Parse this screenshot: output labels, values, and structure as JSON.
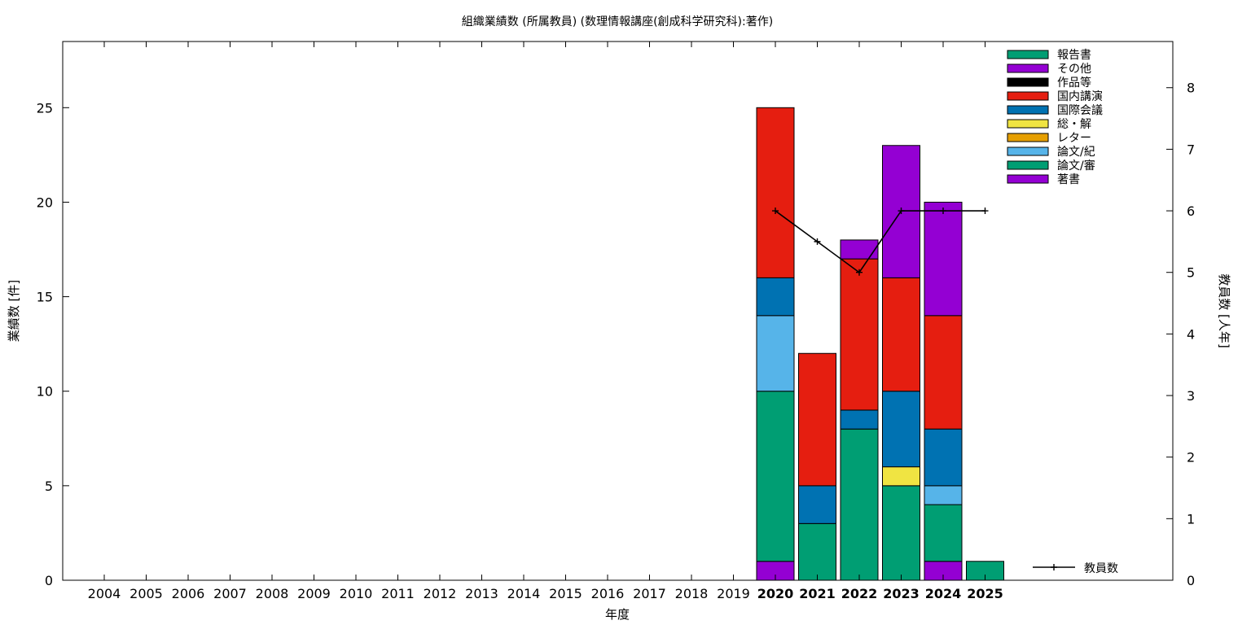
{
  "chart_data": {
    "type": "bar",
    "stacked": true,
    "title": "組織業績数 (所属教員) (数理情報講座(創成科学研究科):著作)",
    "xlabel": "年度",
    "ylabel": "業績数 [件]",
    "y2label": "教員数 [人年]",
    "ylim": [
      0,
      28.5
    ],
    "y2lim": [
      0,
      8.75
    ],
    "yticks": [
      0,
      5,
      10,
      15,
      20,
      25
    ],
    "y2ticks": [
      0,
      1,
      2,
      3,
      4,
      5,
      6,
      7,
      8
    ],
    "grid": false,
    "legend_position": "top-right",
    "categories": [
      "2004",
      "2005",
      "2006",
      "2007",
      "2008",
      "2009",
      "2010",
      "2011",
      "2012",
      "2013",
      "2014",
      "2015",
      "2016",
      "2017",
      "2018",
      "2019",
      "2020",
      "2021",
      "2022",
      "2023",
      "2024",
      "2025"
    ],
    "series": [
      {
        "name": "著書",
        "color": "#9400d3",
        "values": [
          0,
          0,
          0,
          0,
          0,
          0,
          0,
          0,
          0,
          0,
          0,
          0,
          0,
          0,
          0,
          0,
          1,
          0,
          0,
          0,
          1,
          0
        ]
      },
      {
        "name": "論文/審",
        "color": "#009e73",
        "values": [
          0,
          0,
          0,
          0,
          0,
          0,
          0,
          0,
          0,
          0,
          0,
          0,
          0,
          0,
          0,
          0,
          9,
          3,
          8,
          5,
          3,
          0
        ]
      },
      {
        "name": "論文/紀",
        "color": "#56b4e9",
        "values": [
          0,
          0,
          0,
          0,
          0,
          0,
          0,
          0,
          0,
          0,
          0,
          0,
          0,
          0,
          0,
          0,
          4,
          0,
          0,
          0,
          1,
          0
        ]
      },
      {
        "name": "レター",
        "color": "#e69f00",
        "values": [
          0,
          0,
          0,
          0,
          0,
          0,
          0,
          0,
          0,
          0,
          0,
          0,
          0,
          0,
          0,
          0,
          0,
          0,
          0,
          0,
          0,
          0
        ]
      },
      {
        "name": "総・解",
        "color": "#f0e442",
        "values": [
          0,
          0,
          0,
          0,
          0,
          0,
          0,
          0,
          0,
          0,
          0,
          0,
          0,
          0,
          0,
          0,
          0,
          0,
          0,
          1,
          0,
          0
        ]
      },
      {
        "name": "国際会議",
        "color": "#0072b2",
        "values": [
          0,
          0,
          0,
          0,
          0,
          0,
          0,
          0,
          0,
          0,
          0,
          0,
          0,
          0,
          0,
          0,
          2,
          2,
          1,
          4,
          3,
          0
        ]
      },
      {
        "name": "国内講演",
        "color": "#e51e10",
        "values": [
          0,
          0,
          0,
          0,
          0,
          0,
          0,
          0,
          0,
          0,
          0,
          0,
          0,
          0,
          0,
          0,
          9,
          7,
          8,
          6,
          6,
          0
        ]
      },
      {
        "name": "作品等",
        "color": "#000000",
        "values": [
          0,
          0,
          0,
          0,
          0,
          0,
          0,
          0,
          0,
          0,
          0,
          0,
          0,
          0,
          0,
          0,
          0,
          0,
          0,
          0,
          0,
          0
        ]
      },
      {
        "name": "その他",
        "color": "#9400d3",
        "values": [
          0,
          0,
          0,
          0,
          0,
          0,
          0,
          0,
          0,
          0,
          0,
          0,
          0,
          0,
          0,
          0,
          0,
          0,
          1,
          7,
          6,
          0
        ]
      },
      {
        "name": "報告書",
        "color": "#009e73",
        "values": [
          0,
          0,
          0,
          0,
          0,
          0,
          0,
          0,
          0,
          0,
          0,
          0,
          0,
          0,
          0,
          0,
          0,
          0,
          0,
          0,
          0,
          1
        ]
      }
    ],
    "legend_order": [
      "報告書",
      "その他",
      "作品等",
      "国内講演",
      "国際会議",
      "総・解",
      "レター",
      "論文/紀",
      "論文/審",
      "著書"
    ],
    "line_series": {
      "name": "教員数",
      "axis": "y2",
      "color": "#000000",
      "points": [
        {
          "x": "2020",
          "y": 6
        },
        {
          "x": "2021",
          "y": 5.5
        },
        {
          "x": "2022",
          "y": 5
        },
        {
          "x": "2023",
          "y": 6
        },
        {
          "x": "2024",
          "y": 6
        },
        {
          "x": "2025",
          "y": 6
        }
      ]
    },
    "bold_categories": [
      "2020",
      "2021",
      "2022",
      "2023",
      "2024",
      "2025"
    ]
  }
}
